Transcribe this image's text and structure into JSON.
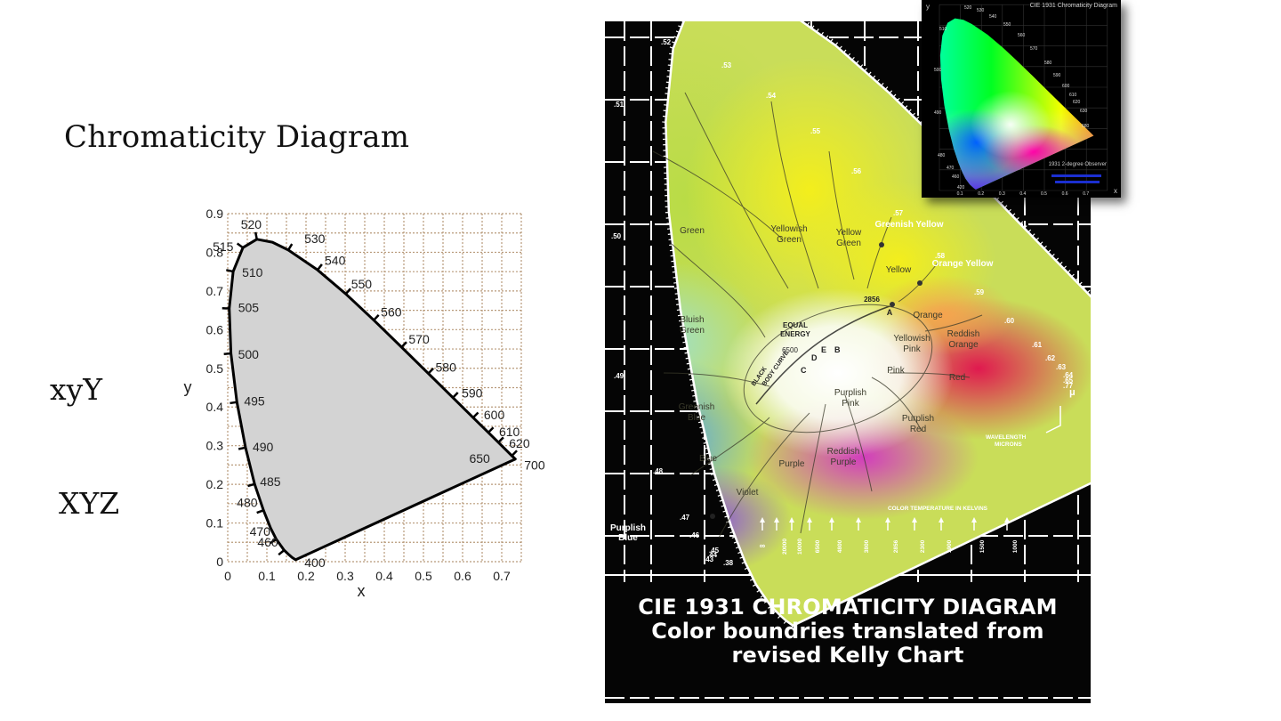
{
  "slide": {
    "title": "Chromaticity Diagram",
    "label_xyy": "xyY",
    "label_xyz": "XYZ"
  },
  "left_diagram": {
    "x_axis_label": "x",
    "y_axis_label": "y",
    "x_ticks": [
      "0",
      "0.1",
      "0.2",
      "0.3",
      "0.4",
      "0.5",
      "0.6",
      "0.7"
    ],
    "y_ticks": [
      "0",
      "0.1",
      "0.2",
      "0.3",
      "0.4",
      "0.5",
      "0.6",
      "0.7",
      "0.8",
      "0.9"
    ],
    "wavelength_labels": [
      "400",
      "460",
      "470",
      "480",
      "485",
      "490",
      "495",
      "500",
      "505",
      "510",
      "515",
      "520",
      "530",
      "540",
      "550",
      "560",
      "570",
      "580",
      "590",
      "600",
      "610",
      "620",
      "650",
      "700"
    ],
    "colors": {
      "fill": "#d3d3d3",
      "grid": "#b89a7a",
      "outline": "#000000"
    }
  },
  "kelly_chart": {
    "caption_line1": "CIE 1931 CHROMATICITY DIAGRAM",
    "caption_line2": "Color boundries translated from",
    "caption_line3": "revised Kelly Chart",
    "regions": [
      "Green",
      "Yellowish Green",
      "Yellow Green",
      "Greenish Yellow",
      "Yellow",
      "Orange Yellow",
      "Orange",
      "Reddish Orange",
      "Bluish Green",
      "Yellowish Pink",
      "Pink",
      "Red",
      "Purplish Pink",
      "Purplish Red",
      "Greenish Blue",
      "Blue",
      "Purple",
      "Reddish Purple",
      "Violet",
      "Purplish Blue"
    ],
    "point_labels": [
      "EQUAL ENERGY",
      "6500",
      "2856",
      "A",
      "B",
      "C",
      "D",
      "E",
      "BLACK BODY CURVE"
    ],
    "edge_labels": [
      ".52",
      ".53",
      ".54",
      ".55",
      ".56",
      ".57",
      ".58",
      ".59",
      ".60",
      ".61",
      ".62",
      ".63",
      ".64",
      ".65",
      ".77",
      ".51",
      ".50",
      ".49",
      ".48",
      ".47",
      ".46",
      ".45",
      ".44",
      ".43",
      ".38"
    ],
    "wavelength_note": "WAVELENGTH MICRONS",
    "color_temp_title": "COLOR TEMPERATURE IN KELVINS",
    "color_temps": [
      "∞",
      "20000",
      "10000",
      "6500",
      "4800",
      "3800",
      "2856",
      "2300",
      "1900",
      "1500",
      "1000"
    ],
    "micron_unit": "μ"
  },
  "inset": {
    "title": "CIE 1931 Chromaticity Diagram",
    "subtitle": "1931 2-degree Observer",
    "y_label": "y",
    "x_label": "x",
    "wavelengths": [
      "520",
      "530",
      "540",
      "550",
      "560",
      "570",
      "580",
      "590",
      "600",
      "610",
      "620",
      "630",
      "680",
      "510",
      "500",
      "490",
      "480",
      "470",
      "460",
      "420"
    ],
    "x_ticks": [
      "0.1",
      "0.2",
      "0.3",
      "0.4",
      "0.5",
      "0.6",
      "0.7"
    ]
  }
}
